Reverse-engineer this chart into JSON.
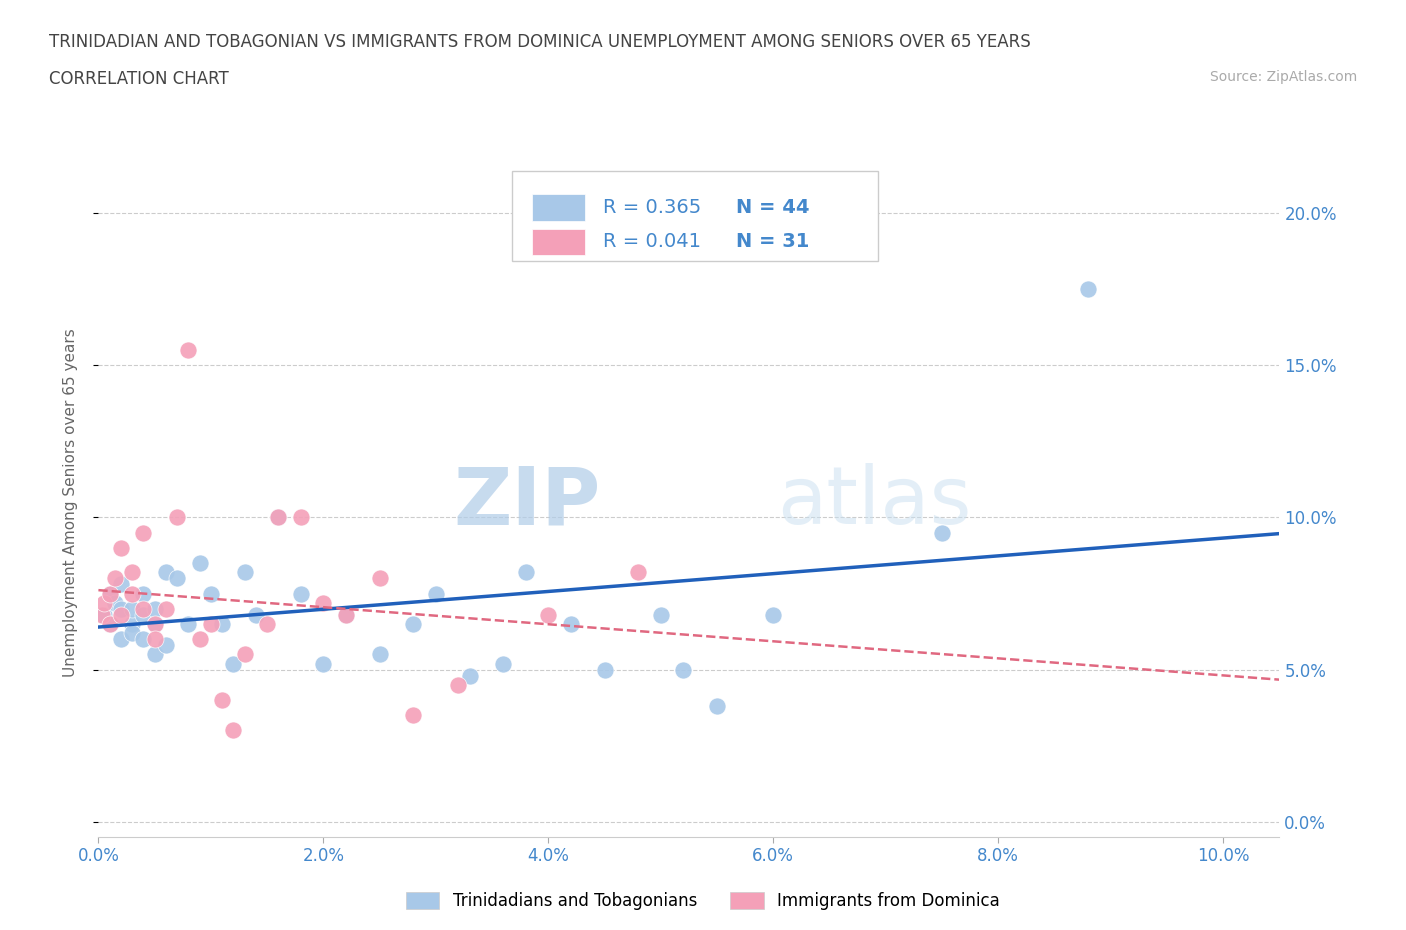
{
  "title_line1": "TRINIDADIAN AND TOBAGONIAN VS IMMIGRANTS FROM DOMINICA UNEMPLOYMENT AMONG SENIORS OVER 65 YEARS",
  "title_line2": "CORRELATION CHART",
  "source_text": "Source: ZipAtlas.com",
  "ylabel": "Unemployment Among Seniors over 65 years",
  "watermark_zip": "ZIP",
  "watermark_atlas": "atlas",
  "blue_R": 0.365,
  "blue_N": 44,
  "pink_R": 0.041,
  "pink_N": 31,
  "blue_color": "#a8c8e8",
  "pink_color": "#f4a0b8",
  "blue_line_color": "#2060bb",
  "pink_line_color": "#e06880",
  "axis_label_color": "#4488cc",
  "title_color": "#444444",
  "xlim": [
    0.0,
    0.105
  ],
  "ylim": [
    -0.005,
    0.215
  ],
  "xticks": [
    0.0,
    0.02,
    0.04,
    0.06,
    0.08,
    0.1
  ],
  "yticks": [
    0.0,
    0.05,
    0.1,
    0.15,
    0.2
  ],
  "blue_scatter_x": [
    0.0005,
    0.001,
    0.001,
    0.0015,
    0.002,
    0.002,
    0.002,
    0.003,
    0.003,
    0.003,
    0.004,
    0.004,
    0.004,
    0.005,
    0.005,
    0.005,
    0.006,
    0.006,
    0.007,
    0.008,
    0.009,
    0.01,
    0.011,
    0.012,
    0.013,
    0.014,
    0.016,
    0.018,
    0.02,
    0.022,
    0.025,
    0.028,
    0.03,
    0.033,
    0.036,
    0.038,
    0.042,
    0.045,
    0.05,
    0.052,
    0.055,
    0.06,
    0.075,
    0.088
  ],
  "blue_scatter_y": [
    0.068,
    0.065,
    0.075,
    0.072,
    0.07,
    0.06,
    0.078,
    0.065,
    0.07,
    0.062,
    0.075,
    0.068,
    0.06,
    0.065,
    0.07,
    0.055,
    0.082,
    0.058,
    0.08,
    0.065,
    0.085,
    0.075,
    0.065,
    0.052,
    0.082,
    0.068,
    0.1,
    0.075,
    0.052,
    0.068,
    0.055,
    0.065,
    0.075,
    0.048,
    0.052,
    0.082,
    0.065,
    0.05,
    0.068,
    0.05,
    0.038,
    0.068,
    0.095,
    0.175
  ],
  "pink_scatter_x": [
    0.0003,
    0.0005,
    0.001,
    0.001,
    0.0015,
    0.002,
    0.002,
    0.003,
    0.003,
    0.004,
    0.004,
    0.005,
    0.005,
    0.006,
    0.007,
    0.008,
    0.009,
    0.01,
    0.011,
    0.012,
    0.013,
    0.015,
    0.016,
    0.018,
    0.02,
    0.022,
    0.025,
    0.028,
    0.032,
    0.04,
    0.048
  ],
  "pink_scatter_y": [
    0.068,
    0.072,
    0.075,
    0.065,
    0.08,
    0.09,
    0.068,
    0.075,
    0.082,
    0.07,
    0.095,
    0.065,
    0.06,
    0.07,
    0.1,
    0.155,
    0.06,
    0.065,
    0.04,
    0.03,
    0.055,
    0.065,
    0.1,
    0.1,
    0.072,
    0.068,
    0.08,
    0.035,
    0.045,
    0.068,
    0.082
  ],
  "legend_label_blue": "Trinidadians and Tobagonians",
  "legend_label_pink": "Immigrants from Dominica",
  "background_color": "#ffffff",
  "grid_color": "#cccccc"
}
